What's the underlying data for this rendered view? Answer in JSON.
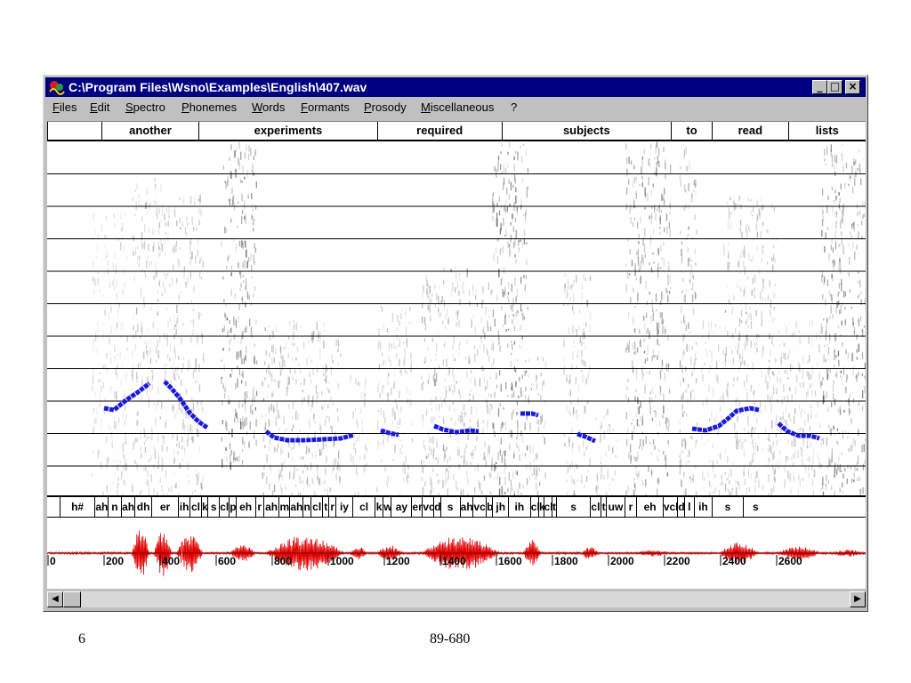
{
  "window": {
    "title": "C:\\Program Files\\Wsno\\Examples\\English\\407.wav",
    "icon": "wave-app-icon",
    "controls": {
      "minimize": "_",
      "maximize": "□",
      "close": "×"
    }
  },
  "menu": [
    "Files",
    "Edit",
    "Spectro",
    "Phonemes",
    "Words",
    "Formants",
    "Prosody",
    "Miscellaneous",
    "?"
  ],
  "words": [
    {
      "text": "",
      "x0": 0,
      "x1": 0.066
    },
    {
      "text": "another",
      "x0": 0.066,
      "x1": 0.185
    },
    {
      "text": "experiments",
      "x0": 0.185,
      "x1": 0.403
    },
    {
      "text": "required",
      "x0": 0.403,
      "x1": 0.555
    },
    {
      "text": "subjects",
      "x0": 0.555,
      "x1": 0.762
    },
    {
      "text": "to",
      "x0": 0.762,
      "x1": 0.812
    },
    {
      "text": "read",
      "x0": 0.812,
      "x1": 0.905
    },
    {
      "text": "lists",
      "x0": 0.905,
      "x1": 1.0
    }
  ],
  "phonemes": [
    {
      "t": "h#",
      "x0": 0.015,
      "x1": 0.058
    },
    {
      "t": "ah",
      "x0": 0.058,
      "x1": 0.074
    },
    {
      "t": "n",
      "x0": 0.074,
      "x1": 0.09
    },
    {
      "t": "ah",
      "x0": 0.09,
      "x1": 0.107
    },
    {
      "t": "dh",
      "x0": 0.107,
      "x1": 0.127
    },
    {
      "t": "er",
      "x0": 0.127,
      "x1": 0.16
    },
    {
      "t": "ih",
      "x0": 0.16,
      "x1": 0.174
    },
    {
      "t": "cl",
      "x0": 0.174,
      "x1": 0.188
    },
    {
      "t": "k",
      "x0": 0.188,
      "x1": 0.196
    },
    {
      "t": "s",
      "x0": 0.196,
      "x1": 0.21
    },
    {
      "t": "cl",
      "x0": 0.21,
      "x1": 0.222
    },
    {
      "t": "p",
      "x0": 0.222,
      "x1": 0.23
    },
    {
      "t": "eh",
      "x0": 0.23,
      "x1": 0.254
    },
    {
      "t": "r",
      "x0": 0.254,
      "x1": 0.264
    },
    {
      "t": "ah",
      "x0": 0.264,
      "x1": 0.283
    },
    {
      "t": "m",
      "x0": 0.283,
      "x1": 0.296
    },
    {
      "t": "ah",
      "x0": 0.296,
      "x1": 0.312
    },
    {
      "t": "n",
      "x0": 0.312,
      "x1": 0.322
    },
    {
      "t": "cl",
      "x0": 0.322,
      "x1": 0.336
    },
    {
      "t": "t",
      "x0": 0.336,
      "x1": 0.344
    },
    {
      "t": "r",
      "x0": 0.344,
      "x1": 0.352
    },
    {
      "t": "iy",
      "x0": 0.352,
      "x1": 0.373
    },
    {
      "t": "cl",
      "x0": 0.373,
      "x1": 0.4
    },
    {
      "t": "k",
      "x0": 0.4,
      "x1": 0.41
    },
    {
      "t": "w",
      "x0": 0.41,
      "x1": 0.42
    },
    {
      "t": "ay",
      "x0": 0.42,
      "x1": 0.445
    },
    {
      "t": "er",
      "x0": 0.445,
      "x1": 0.458
    },
    {
      "t": "vcl",
      "x0": 0.458,
      "x1": 0.472
    },
    {
      "t": "d",
      "x0": 0.472,
      "x1": 0.48
    },
    {
      "t": "s",
      "x0": 0.48,
      "x1": 0.504
    },
    {
      "t": "ah",
      "x0": 0.504,
      "x1": 0.52
    },
    {
      "t": "vcl",
      "x0": 0.52,
      "x1": 0.536
    },
    {
      "t": "b",
      "x0": 0.536,
      "x1": 0.544
    },
    {
      "t": "jh",
      "x0": 0.544,
      "x1": 0.563
    },
    {
      "t": "ih",
      "x0": 0.563,
      "x1": 0.59
    },
    {
      "t": "cl",
      "x0": 0.59,
      "x1": 0.6
    },
    {
      "t": "k",
      "x0": 0.6,
      "x1": 0.606
    },
    {
      "t": "cl",
      "x0": 0.606,
      "x1": 0.616
    },
    {
      "t": "t",
      "x0": 0.616,
      "x1": 0.622
    },
    {
      "t": "s",
      "x0": 0.622,
      "x1": 0.663
    },
    {
      "t": "cl",
      "x0": 0.663,
      "x1": 0.676
    },
    {
      "t": "t",
      "x0": 0.676,
      "x1": 0.683
    },
    {
      "t": "uw",
      "x0": 0.683,
      "x1": 0.705
    },
    {
      "t": "r",
      "x0": 0.705,
      "x1": 0.72
    },
    {
      "t": "eh",
      "x0": 0.72,
      "x1": 0.752
    },
    {
      "t": "vcl",
      "x0": 0.752,
      "x1": 0.77
    },
    {
      "t": "d",
      "x0": 0.77,
      "x1": 0.778
    },
    {
      "t": "l",
      "x0": 0.778,
      "x1": 0.79
    },
    {
      "t": "ih",
      "x0": 0.79,
      "x1": 0.812
    },
    {
      "t": "s",
      "x0": 0.812,
      "x1": 0.85
    },
    {
      "t": "s",
      "x0": 0.85,
      "x1": 0.88
    }
  ],
  "waveform": {
    "ticks": [
      "0",
      "200",
      "400",
      "600",
      "800",
      "1000",
      "1200",
      "1400",
      "1600",
      "1800",
      "2000",
      "2200",
      "2400",
      "2600"
    ]
  },
  "footer": {
    "left": "6",
    "center": "89-680"
  },
  "colors": {
    "pitch": "#1a1adc",
    "waveform": "#e00000",
    "titlebar": "#000080"
  }
}
